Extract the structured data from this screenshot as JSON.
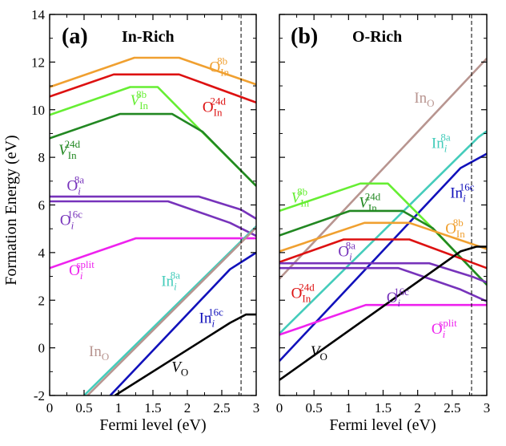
{
  "chart_data": [
    {
      "type": "line",
      "panel_label": "(a)",
      "condition": "In-Rich",
      "xlabel": "Fermi level (eV)",
      "ylabel": "Formation Energy (eV)",
      "xlim": [
        0,
        3
      ],
      "ylim": [
        -2,
        14
      ],
      "xticks": [
        "0",
        "0.5",
        "1",
        "1.5",
        "2",
        "2.5",
        "3"
      ],
      "yticks": [
        "-2",
        "0",
        "2",
        "4",
        "6",
        "8",
        "10",
        "12",
        "14"
      ],
      "grid": false,
      "band_gap_marker": 2.78,
      "series": [
        {
          "key": "O_In_8b",
          "color": "#f0a030",
          "x": [
            0,
            1.23,
            1.88,
            3.0
          ],
          "y": [
            10.95,
            12.18,
            12.18,
            11.06
          ]
        },
        {
          "key": "O_In_24d",
          "color": "#dd1111",
          "x": [
            0,
            0.93,
            1.88,
            3.0
          ],
          "y": [
            10.55,
            11.48,
            11.48,
            10.3
          ]
        },
        {
          "key": "V_In_8b",
          "color": "#66ee33",
          "x": [
            0,
            1.17,
            1.57,
            2.22,
            3.0
          ],
          "y": [
            9.78,
            10.95,
            10.95,
            9.05,
            6.8
          ]
        },
        {
          "key": "V_In_24d",
          "color": "#228822",
          "x": [
            0,
            1.02,
            1.78,
            2.22,
            3.0
          ],
          "y": [
            8.8,
            9.82,
            9.82,
            9.08,
            6.8
          ]
        },
        {
          "key": "O_i_8a",
          "color": "#7733bb",
          "x": [
            0,
            2.17,
            2.78,
            3.0
          ],
          "y": [
            6.35,
            6.35,
            5.8,
            5.42
          ]
        },
        {
          "key": "O_i_16c",
          "color": "#7733bb",
          "x": [
            0,
            1.72,
            2.62,
            3.0
          ],
          "y": [
            6.15,
            6.15,
            5.25,
            4.7
          ]
        },
        {
          "key": "O_i_split",
          "color": "#ee22ee",
          "x": [
            0,
            1.25,
            3.0
          ],
          "y": [
            3.35,
            4.6,
            4.6
          ]
        },
        {
          "key": "In_i_8a",
          "color": "#44ccbb",
          "x": [
            0.5,
            3.0
          ],
          "y": [
            -2.0,
            5.1
          ]
        },
        {
          "key": "In_O",
          "color": "#b89590",
          "x": [
            0.55,
            3.0
          ],
          "y": [
            -2.0,
            5.05
          ]
        },
        {
          "key": "In_i_16c",
          "color": "#1111bb",
          "x": [
            0.88,
            2.62,
            3.0
          ],
          "y": [
            -2.0,
            3.3,
            4.0
          ]
        },
        {
          "key": "V_O",
          "color": "#000000",
          "x": [
            0.95,
            2.62,
            2.85,
            3.0
          ],
          "y": [
            -2.0,
            1.05,
            1.4,
            1.4
          ]
        }
      ],
      "labels": [
        {
          "key": "O_In_8b",
          "main": "O",
          "sub": "In",
          "sup": "8b",
          "italic": false,
          "color": "#f0a030",
          "x": 2.32,
          "y": 11.6
        },
        {
          "key": "O_In_24d",
          "main": "O",
          "sub": "In",
          "sup": "24d",
          "italic": false,
          "color": "#dd1111",
          "x": 2.22,
          "y": 9.9
        },
        {
          "key": "V_In_8b",
          "main": "V",
          "sub": "In",
          "sup": "8b",
          "italic": true,
          "color": "#66ee33",
          "x": 1.17,
          "y": 10.2
        },
        {
          "key": "V_In_24d",
          "main": "V",
          "sub": "In",
          "sup": "24d",
          "italic": true,
          "color": "#228822",
          "x": 0.13,
          "y": 8.1
        },
        {
          "key": "O_i_8a",
          "main": "O",
          "sub": "i",
          "sup": "8a",
          "italic": false,
          "color": "#7733bb",
          "x": 0.25,
          "y": 6.6
        },
        {
          "key": "O_i_16c",
          "main": "O",
          "sub": "i",
          "sup": "16c",
          "italic": false,
          "color": "#7733bb",
          "x": 0.15,
          "y": 5.15
        },
        {
          "key": "O_i_split",
          "main": "O",
          "sub": "i",
          "sup": "split",
          "italic": false,
          "color": "#ee22ee",
          "x": 0.28,
          "y": 3.05
        },
        {
          "key": "In_i_8a",
          "main": "In",
          "sub": "i",
          "sup": "8a",
          "italic": false,
          "color": "#44ccbb",
          "x": 1.62,
          "y": 2.6
        },
        {
          "key": "In_O",
          "main": "In",
          "sub": "O",
          "sup": "",
          "italic": false,
          "color": "#b89590",
          "x": 0.57,
          "y": -0.35
        },
        {
          "key": "In_i_16c",
          "main": "In",
          "sub": "i",
          "sup": "16c",
          "italic": false,
          "color": "#1111bb",
          "x": 2.17,
          "y": 1.05
        },
        {
          "key": "V_O",
          "main": "V",
          "sub": "O",
          "sup": "",
          "italic": true,
          "color": "#000000",
          "x": 1.77,
          "y": -1.0
        }
      ]
    },
    {
      "type": "line",
      "panel_label": "(b)",
      "condition": "O-Rich",
      "xlabel": "Fermi level (eV)",
      "ylabel": "",
      "xlim": [
        0,
        3
      ],
      "ylim": [
        -2,
        14
      ],
      "xticks": [
        "0",
        "0.5",
        "1",
        "1.5",
        "2",
        "2.5",
        "3"
      ],
      "yticks": [],
      "grid": false,
      "band_gap_marker": 2.78,
      "series": [
        {
          "key": "In_O",
          "color": "#b89590",
          "x": [
            0,
            3.0
          ],
          "y": [
            2.9,
            12.15
          ]
        },
        {
          "key": "In_i_8a",
          "color": "#44ccbb",
          "x": [
            0,
            2.88,
            3.0
          ],
          "y": [
            0.6,
            8.85,
            9.1
          ]
        },
        {
          "key": "In_i_16c",
          "color": "#1111bb",
          "x": [
            0,
            2.62,
            3.0
          ],
          "y": [
            -0.55,
            7.55,
            8.15
          ]
        },
        {
          "key": "V_In_8b",
          "color": "#66ee33",
          "x": [
            0,
            1.17,
            1.57,
            2.22,
            3.0
          ],
          "y": [
            5.75,
            6.9,
            6.9,
            5.0,
            2.65
          ]
        },
        {
          "key": "V_In_24d",
          "color": "#228822",
          "x": [
            0,
            1.02,
            1.78,
            2.22,
            3.0
          ],
          "y": [
            4.72,
            5.75,
            5.75,
            5.02,
            2.65
          ]
        },
        {
          "key": "O_In_8b",
          "color": "#f0a030",
          "x": [
            0,
            1.23,
            1.88,
            3.0
          ],
          "y": [
            4.05,
            5.25,
            5.25,
            4.15
          ]
        },
        {
          "key": "O_In_24d",
          "color": "#dd1111",
          "x": [
            0,
            0.93,
            1.88,
            3.0
          ],
          "y": [
            3.6,
            4.55,
            4.55,
            3.35
          ]
        },
        {
          "key": "O_i_8a",
          "color": "#7733bb",
          "x": [
            0,
            2.17,
            2.78,
            3.0
          ],
          "y": [
            3.55,
            3.55,
            3.0,
            2.75
          ]
        },
        {
          "key": "O_i_16c",
          "color": "#7733bb",
          "x": [
            0,
            1.72,
            2.62,
            3.0
          ],
          "y": [
            3.35,
            3.35,
            2.45,
            1.95
          ]
        },
        {
          "key": "O_i_split",
          "color": "#ee22ee",
          "x": [
            0,
            1.25,
            3.0
          ],
          "y": [
            0.55,
            1.8,
            1.8
          ]
        },
        {
          "key": "V_O",
          "color": "#000000",
          "x": [
            0,
            2.62,
            2.85,
            3.0
          ],
          "y": [
            -1.35,
            4.05,
            4.25,
            4.25
          ]
        }
      ],
      "labels": [
        {
          "key": "In_O",
          "main": "In",
          "sub": "O",
          "sup": "",
          "italic": false,
          "color": "#b89590",
          "x": 1.95,
          "y": 10.3
        },
        {
          "key": "In_i_8a",
          "main": "In",
          "sub": "i",
          "sup": "8a",
          "italic": false,
          "color": "#44ccbb",
          "x": 2.2,
          "y": 8.4
        },
        {
          "key": "In_i_16c",
          "main": "In",
          "sub": "i",
          "sup": "16c",
          "italic": false,
          "color": "#1111bb",
          "x": 2.47,
          "y": 6.3
        },
        {
          "key": "V_In_8b",
          "main": "V",
          "sub": "In",
          "sup": "8b",
          "italic": true,
          "color": "#66ee33",
          "x": 0.17,
          "y": 6.1
        },
        {
          "key": "V_In_24d",
          "main": "V",
          "sub": "In",
          "sup": "24d",
          "italic": true,
          "color": "#228822",
          "x": 1.15,
          "y": 5.9
        },
        {
          "key": "O_In_8b",
          "main": "O",
          "sub": "In",
          "sup": "8b",
          "italic": false,
          "color": "#f0a030",
          "x": 2.4,
          "y": 4.8
        },
        {
          "key": "O_In_24d",
          "main": "O",
          "sub": "In",
          "sup": "24d",
          "italic": false,
          "color": "#dd1111",
          "x": 0.17,
          "y": 2.1
        },
        {
          "key": "O_i_8a",
          "main": "O",
          "sub": "i",
          "sup": "8a",
          "italic": false,
          "color": "#7733bb",
          "x": 0.85,
          "y": 3.85
        },
        {
          "key": "O_i_16c",
          "main": "O",
          "sub": "i",
          "sup": "16c",
          "italic": false,
          "color": "#7733bb",
          "x": 1.55,
          "y": 1.9
        },
        {
          "key": "O_i_split",
          "main": "O",
          "sub": "i",
          "sup": "split",
          "italic": false,
          "color": "#ee22ee",
          "x": 2.2,
          "y": 0.6
        },
        {
          "key": "V_O",
          "main": "V",
          "sub": "O",
          "sup": "",
          "italic": true,
          "color": "#000000",
          "x": 0.45,
          "y": -0.35
        }
      ]
    }
  ]
}
